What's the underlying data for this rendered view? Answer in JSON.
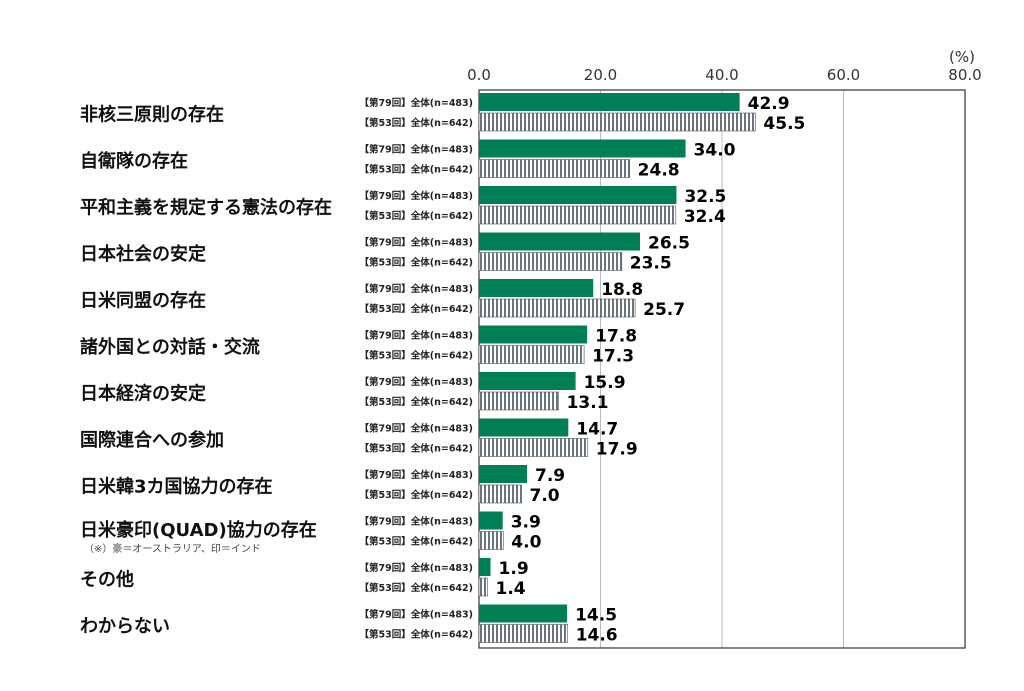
{
  "chart_data": {
    "type": "bar",
    "orientation": "horizontal",
    "unit_label": "(%)",
    "xlim": [
      0,
      80
    ],
    "xticks": [
      "0.0",
      "20.0",
      "40.0",
      "60.0",
      "80.0"
    ],
    "grid": true,
    "categories": [
      "非核三原則の存在",
      "自衛隊の存在",
      "平和主義を規定する憲法の存在",
      "日本社会の安定",
      "日米同盟の存在",
      "諸外国との対話・交流",
      "日本経済の安定",
      "国際連合への参加",
      "日米韓3カ国協力の存在",
      "日米豪印(QUAD)協力の存在",
      "その他",
      "わからない"
    ],
    "category_notes": {
      "9": "（※）豪＝オーストラリア、印＝インド"
    },
    "series": [
      {
        "name": "【第79回】全体(n=483)",
        "color": "#007f56",
        "pattern": "solid",
        "values": [
          42.9,
          34.0,
          32.5,
          26.5,
          18.8,
          17.8,
          15.9,
          14.7,
          7.9,
          3.9,
          1.9,
          14.5
        ]
      },
      {
        "name": "【第53回】全体(n=642)",
        "color": "#6b7580",
        "pattern": "vertical-stripes",
        "values": [
          45.5,
          24.8,
          32.4,
          23.5,
          25.7,
          17.3,
          13.1,
          17.9,
          7.0,
          4.0,
          1.4,
          14.6
        ]
      }
    ]
  }
}
